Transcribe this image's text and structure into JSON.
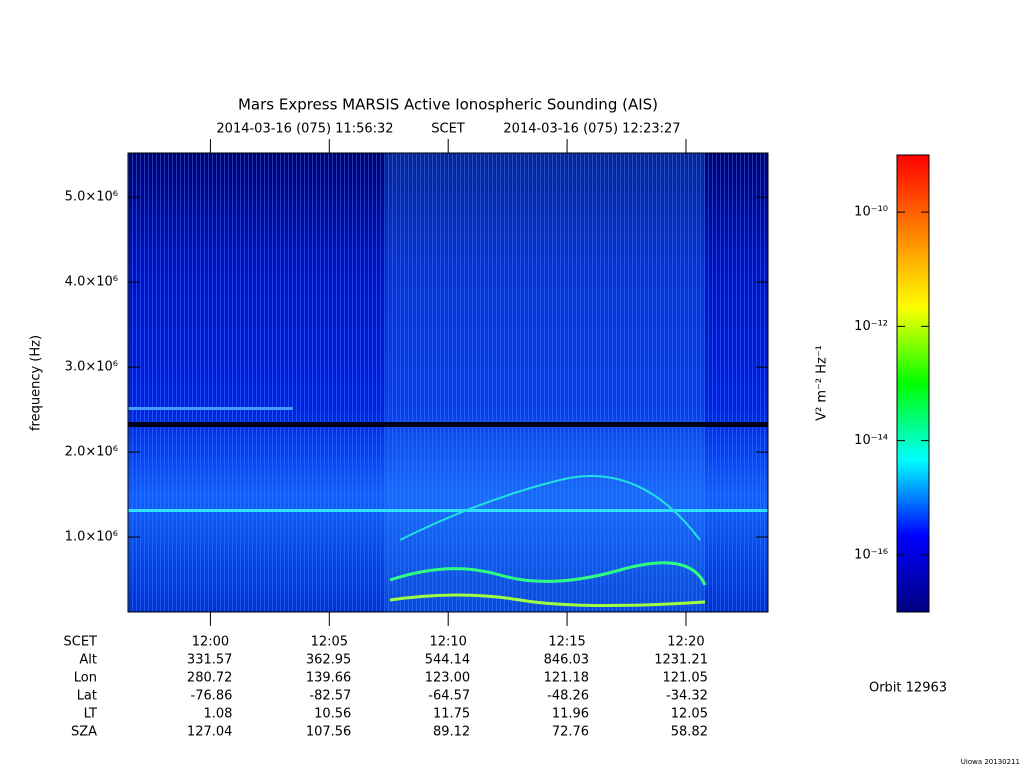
{
  "chart_data": {
    "type": "spectrogram",
    "title": "Mars Express MARSIS Active Ionospheric Sounding (AIS)",
    "start_time": "2014-03-16 (075) 11:56:32",
    "time_system": "SCET",
    "end_time": "2014-03-16 (075) 12:23:27",
    "ylabel": "frequency (Hz)",
    "xlim": [
      42992,
      44607
    ],
    "xticks": [
      {
        "value": 43200,
        "label": "12:00"
      },
      {
        "value": 43500,
        "label": "12:05"
      },
      {
        "value": 43800,
        "label": "12:10"
      },
      {
        "value": 44100,
        "label": "12:15"
      },
      {
        "value": 44400,
        "label": "12:20"
      }
    ],
    "ylim": [
      118000,
      5520000
    ],
    "yticks": [
      {
        "value": 1000000,
        "label": "1.0×10⁶"
      },
      {
        "value": 2000000,
        "label": "2.0×10⁶"
      },
      {
        "value": 3000000,
        "label": "3.0×10⁶"
      },
      {
        "value": 4000000,
        "label": "4.0×10⁶"
      },
      {
        "value": 5000000,
        "label": "5.0×10⁶"
      }
    ],
    "colorbar": {
      "label": "V² m⁻² Hz⁻¹",
      "log_scale": true,
      "lim": [
        1e-17,
        1e-09
      ],
      "ticks": [
        {
          "value": 1e-16,
          "label": "10⁻¹⁶"
        },
        {
          "value": 1e-14,
          "label": "10⁻¹⁴"
        },
        {
          "value": 1e-12,
          "label": "10⁻¹²"
        },
        {
          "value": 1e-10,
          "label": "10⁻¹⁰"
        }
      ],
      "colors": [
        "#000080",
        "#0000ff",
        "#00ffff",
        "#00ff00",
        "#ffff00",
        "#ff8000",
        "#ff0000"
      ]
    },
    "ephemeris": {
      "time_label": "SCET",
      "rows": [
        {
          "label": "Alt",
          "values": [
            "331.57",
            "362.95",
            "544.14",
            "846.03",
            "1231.21"
          ]
        },
        {
          "label": "Lon",
          "values": [
            "280.72",
            "139.66",
            "123.00",
            "121.18",
            "121.05"
          ]
        },
        {
          "label": "Lat",
          "values": [
            "-76.86",
            "-82.57",
            "-64.57",
            "-48.26",
            "-34.32"
          ]
        },
        {
          "label": "LT",
          "values": [
            "1.08",
            "10.56",
            "11.75",
            "11.96",
            "12.05"
          ]
        },
        {
          "label": "SZA",
          "values": [
            "127.04",
            "107.56",
            "89.12",
            "72.76",
            "58.82"
          ]
        }
      ]
    },
    "orbit": "Orbit 12963",
    "credit": "Uiowa 20130211"
  }
}
